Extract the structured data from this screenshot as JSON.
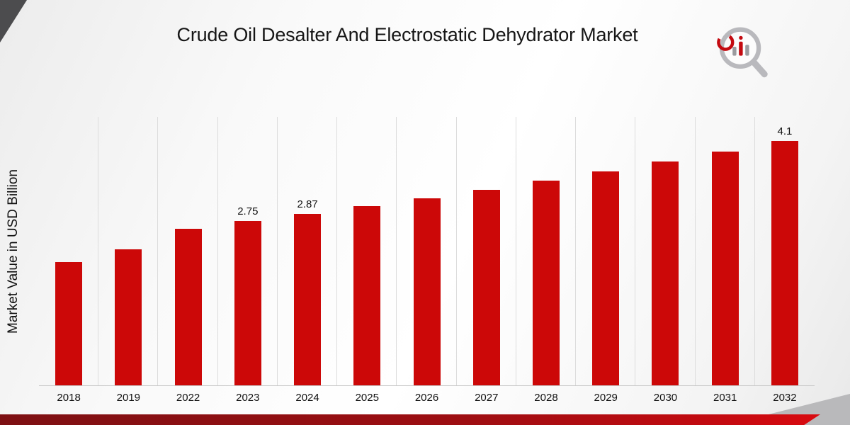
{
  "page": {
    "title": "Crude Oil Desalter And Electrostatic Dehydrator Market"
  },
  "chart_data": {
    "type": "bar",
    "title": "Crude Oil Desalter And Electrostatic Dehydrator Market",
    "xlabel": "",
    "ylabel": "Market Value in USD Billion",
    "categories": [
      "2018",
      "2019",
      "2022",
      "2023",
      "2024",
      "2025",
      "2026",
      "2027",
      "2028",
      "2029",
      "2030",
      "2031",
      "2032"
    ],
    "values": [
      2.07,
      2.28,
      2.62,
      2.75,
      2.87,
      3.0,
      3.13,
      3.28,
      3.43,
      3.59,
      3.75,
      3.92,
      4.1
    ],
    "data_labels": [
      "",
      "",
      "",
      "2.75",
      "2.87",
      "",
      "",
      "",
      "",
      "",
      "",
      "",
      "4.1"
    ],
    "bar_color": "#cc0808",
    "ylim": [
      0,
      4.5
    ],
    "grid": "vertical",
    "legend": "none"
  },
  "branding": {
    "logo_icon": "magnifier-bar-chart-logo",
    "accent_red": "#c40a10",
    "corner_gray": "#4c4c4e",
    "logo_gray": "#b9b9bd"
  }
}
